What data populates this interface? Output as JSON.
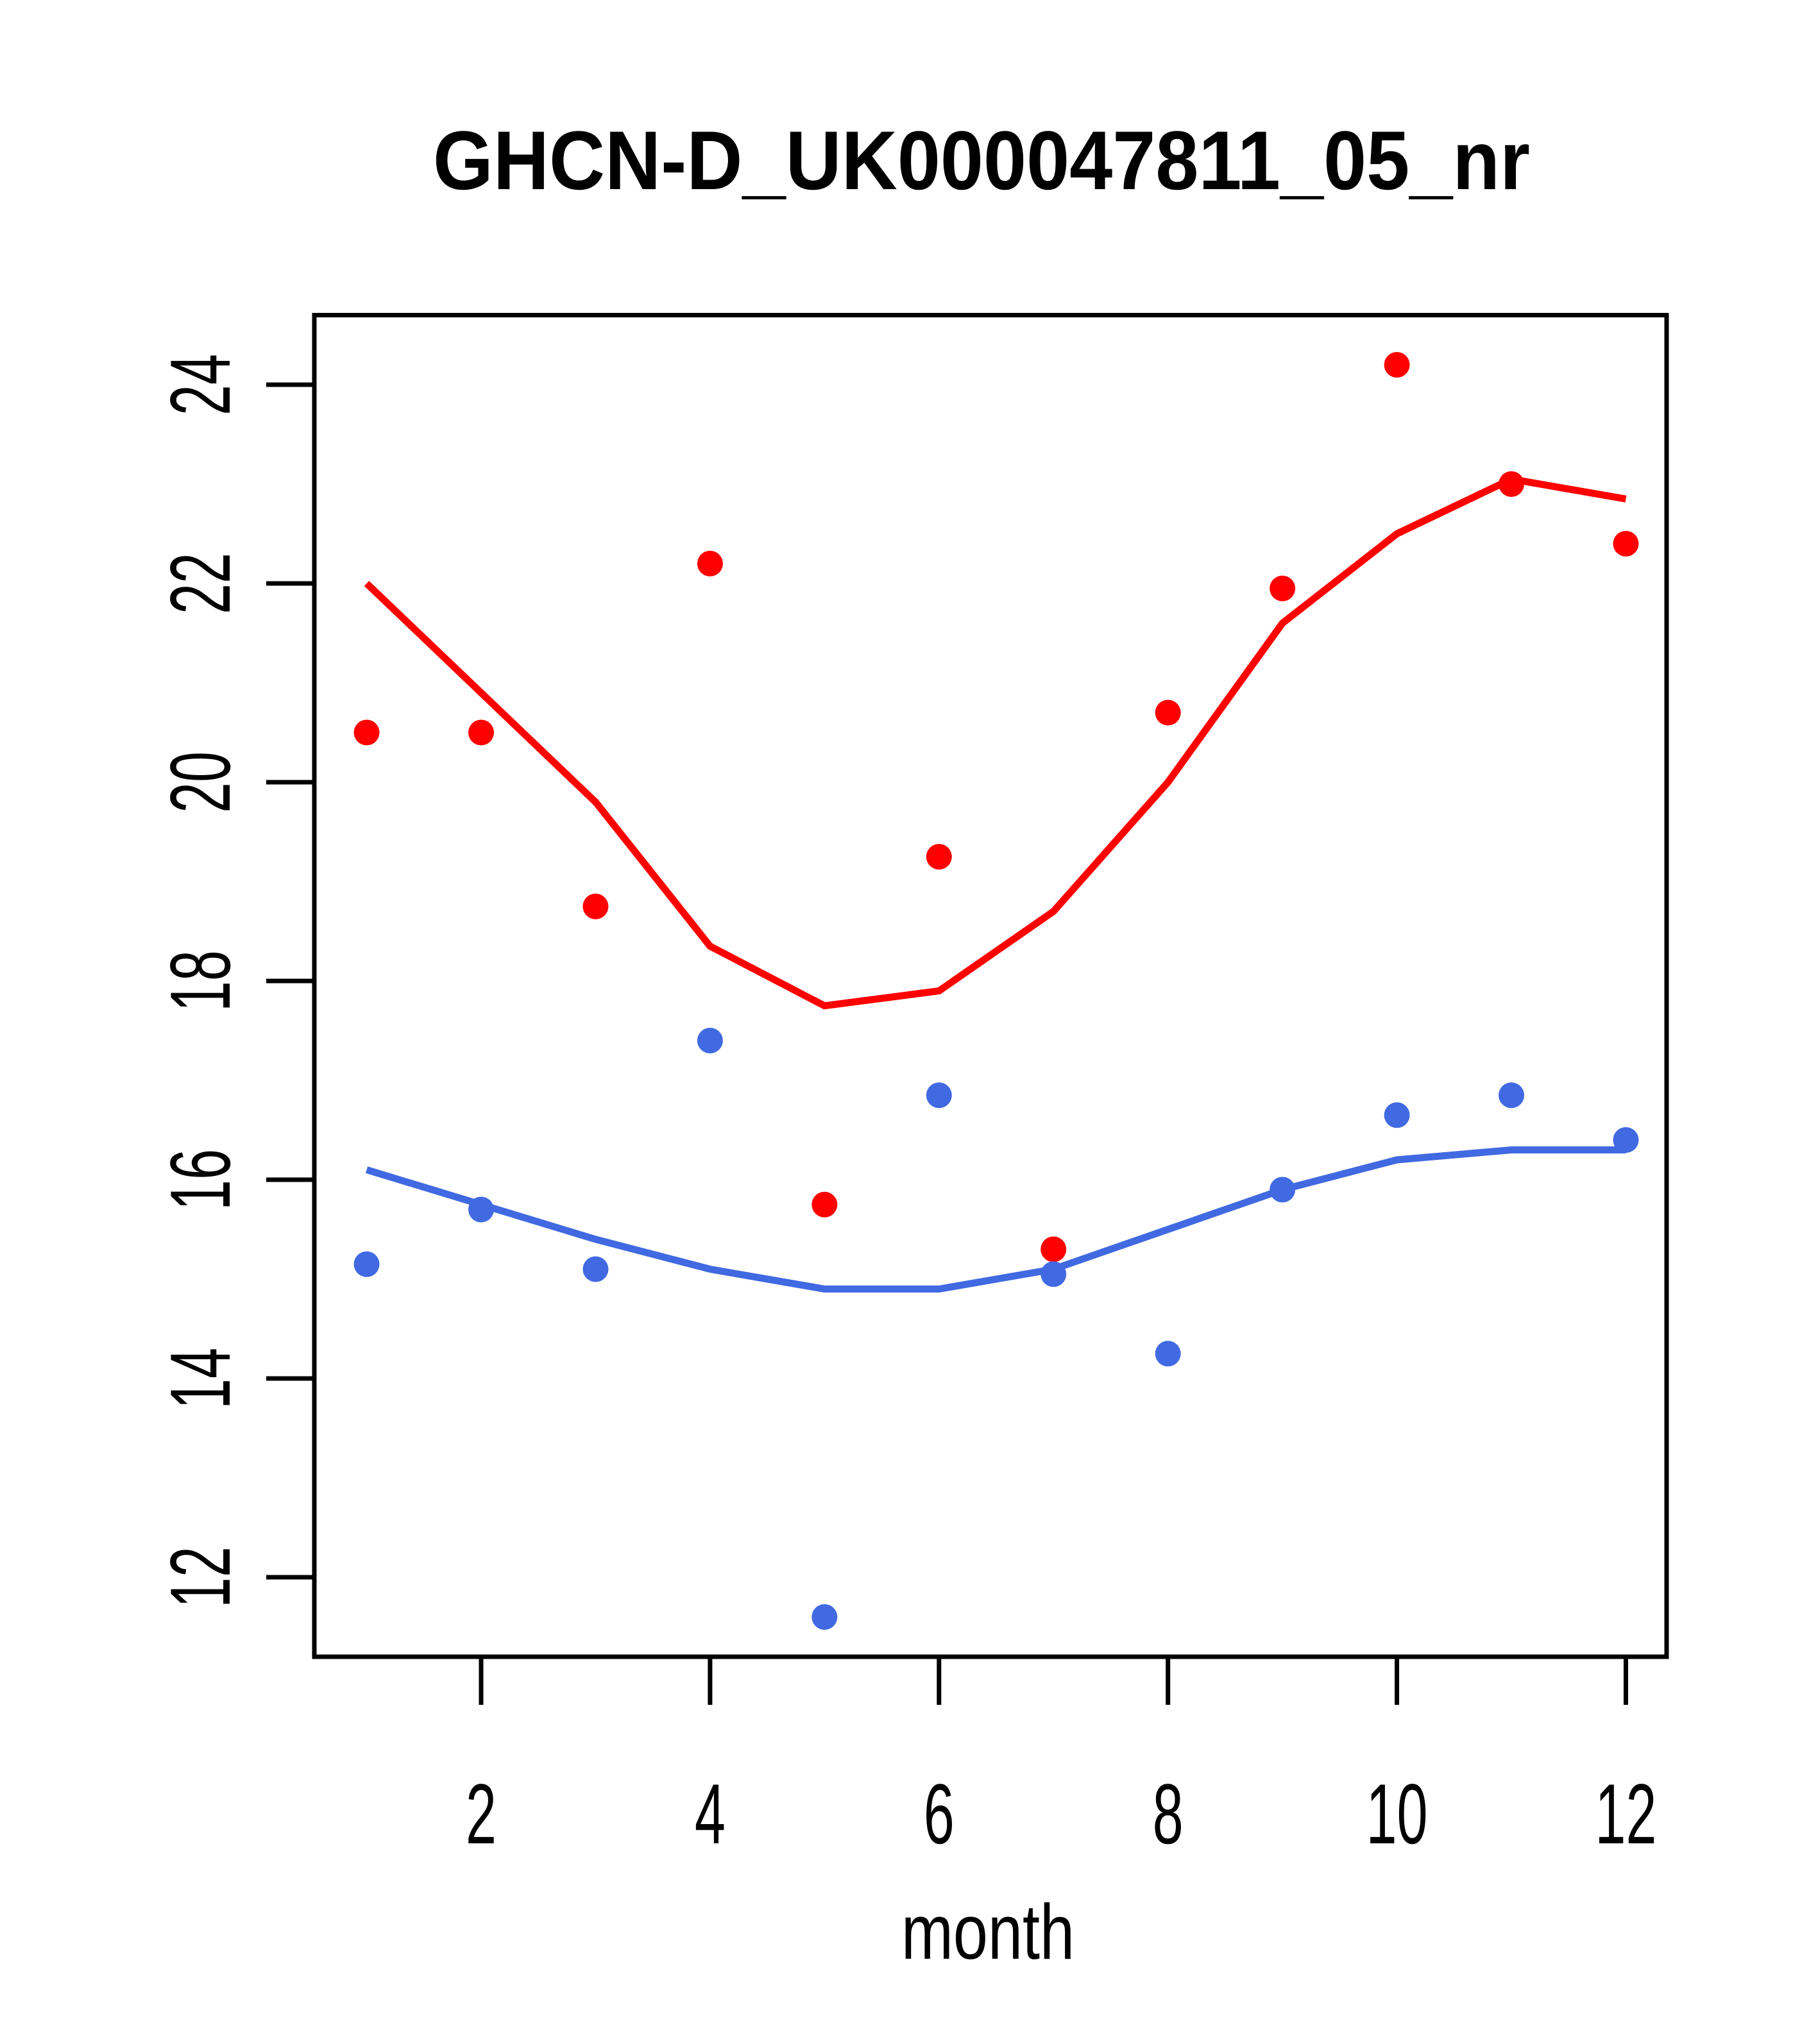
{
  "chart_data": {
    "type": "scatter",
    "title": "GHCN-D_UK000047811_05_nr",
    "xlabel": "month",
    "ylabel": "",
    "x": [
      1,
      2,
      3,
      4,
      5,
      6,
      7,
      8,
      9,
      10,
      11,
      12
    ],
    "x_ticks": [
      2,
      4,
      6,
      8,
      10,
      12
    ],
    "y_ticks": [
      12,
      14,
      16,
      18,
      20,
      22,
      24
    ],
    "xlim": [
      0.543,
      12.356
    ],
    "ylim": [
      11.2,
      24.7
    ],
    "grid": false,
    "legend": "none",
    "background": "#ffffff",
    "axis_color": "#000000",
    "series": [
      {
        "name": "red-monthly-values",
        "kind": "points+loess",
        "color": "#FF0000",
        "points": [
          20.5,
          20.5,
          18.75,
          22.2,
          15.75,
          19.25,
          15.3,
          20.7,
          21.95,
          24.2,
          23.0,
          22.4
        ],
        "loess": [
          22.0,
          20.9,
          19.8,
          18.35,
          17.75,
          17.9,
          18.7,
          20.0,
          21.6,
          22.5,
          23.05,
          22.85
        ]
      },
      {
        "name": "blue-monthly-values",
        "kind": "points+loess",
        "color": "#4169E1",
        "points": [
          15.15,
          15.7,
          15.1,
          17.4,
          11.6,
          16.85,
          15.05,
          14.25,
          15.9,
          16.65,
          16.85,
          16.4
        ],
        "loess": [
          16.1,
          15.75,
          15.4,
          15.1,
          14.9,
          14.9,
          15.1,
          15.5,
          15.9,
          16.2,
          16.3,
          16.3
        ]
      }
    ]
  }
}
